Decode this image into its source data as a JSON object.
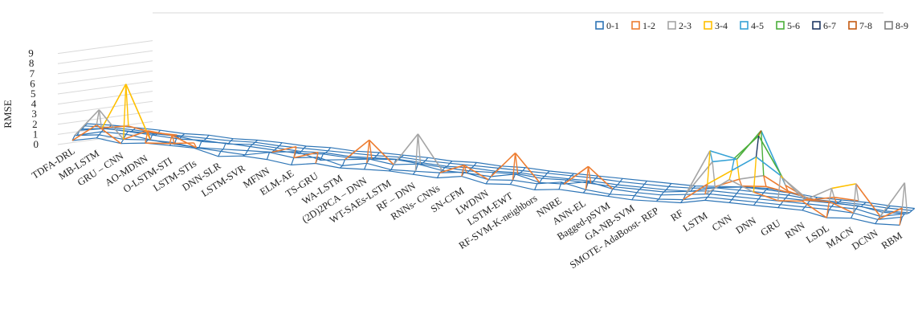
{
  "chart_data": {
    "type": "surface-3d-wireframe",
    "ylabel": "RMSE",
    "zlim": [
      0,
      9
    ],
    "z_ticks": [
      "0",
      "1",
      "2",
      "3",
      "4",
      "5",
      "6",
      "7",
      "8",
      "9"
    ],
    "legend_position": "top-right",
    "legend": [
      {
        "label": "0-1",
        "color": "#2e75b6"
      },
      {
        "label": "1-2",
        "color": "#ed7d31"
      },
      {
        "label": "2-3",
        "color": "#a5a5a5"
      },
      {
        "label": "3-4",
        "color": "#ffc000"
      },
      {
        "label": "4-5",
        "color": "#36a2d6"
      },
      {
        "label": "5-6",
        "color": "#4caf3c"
      },
      {
        "label": "6-7",
        "color": "#1f3864"
      },
      {
        "label": "7-8",
        "color": "#c55a11"
      },
      {
        "label": "8-9",
        "color": "#7f7f7f"
      }
    ],
    "categories": [
      "TDFA-DRL",
      "MB-LSTM",
      "GRU – CNN",
      "AO-MDNN",
      "O-LSTM-STI",
      "LSTM-STIs",
      "DNN-SLR",
      "LSTM-SVR",
      "MFNN",
      "ELM-AE",
      "TS-GRU",
      "WA-LSTM",
      "(2D)2PCA – DNN",
      "WT-SAEs-LSTM",
      "RF – DNN",
      "RNNs- CNNs",
      "SN-CFM",
      "LWDNN",
      "LSTM-EWT",
      "RF-SVM-K-neighbors",
      "NNRE",
      "ANN-EL",
      "Bagged-pSVM",
      "GA-NB-SVM",
      "SMOTE- AdaBoost- REP",
      "RF",
      "LSTM",
      "CNN",
      "DNN",
      "GRU",
      "RNN",
      "LSDL",
      "MACN",
      "DCNN",
      "RBM"
    ],
    "series": [
      {
        "values": [
          0.4,
          2.2,
          0.6,
          0.9,
          1.1,
          1.4,
          0.3,
          0.6,
          0.5,
          0.2,
          0.6,
          0.4,
          0.5,
          0.6,
          0.5,
          0.4,
          0.8,
          0.3,
          0.5,
          0.2,
          0.5,
          0.4,
          0.3,
          0.2,
          0.3,
          0.4,
          1.5,
          3.2,
          2.2,
          1.6,
          1.8,
          0.4,
          0.6,
          0.3,
          0.4
        ]
      },
      {
        "values": [
          0.6,
          3.4,
          0.7,
          1.8,
          1.6,
          0.6,
          0.5,
          0.4,
          1.2,
          0.6,
          1.4,
          0.3,
          0.8,
          0.4,
          0.5,
          0.6,
          1.6,
          0.4,
          0.6,
          0.5,
          1.4,
          0.4,
          0.2,
          0.3,
          0.2,
          0.4,
          2.2,
          3.8,
          5.4,
          3.8,
          1.6,
          1.7,
          0.8,
          0.4,
          1.8
        ]
      },
      {
        "values": [
          0.3,
          1.2,
          5.9,
          0.6,
          0.4,
          0.3,
          0.4,
          0.5,
          0.6,
          1.4,
          0.3,
          0.6,
          2.8,
          0.6,
          3.9,
          0.5,
          0.5,
          0.4,
          3.0,
          0.3,
          0.4,
          2.4,
          0.4,
          0.3,
          0.3,
          0.6,
          5.2,
          4.7,
          7.2,
          3.2,
          1.4,
          2.7,
          3.4,
          0.4,
          4.0
        ]
      },
      {
        "values": [
          0.5,
          1.0,
          1.4,
          1.0,
          1.0,
          0.6,
          0.7,
          0.6,
          0.5,
          0.4,
          0.6,
          0.5,
          0.6,
          0.8,
          0.6,
          0.5,
          0.4,
          0.5,
          0.6,
          0.4,
          0.5,
          0.4,
          0.3,
          0.3,
          0.3,
          0.6,
          3.8,
          4.3,
          7.4,
          2.2,
          1.0,
          1.5,
          1.4,
          0.5,
          0.6
        ]
      },
      {
        "values": [
          0.3,
          0.6,
          0.5,
          0.4,
          0.3,
          0.4,
          0.3,
          0.5,
          0.4,
          0.3,
          0.4,
          0.3,
          0.4,
          0.5,
          0.4,
          0.3,
          0.4,
          0.3,
          0.4,
          0.3,
          0.3,
          0.3,
          0.2,
          0.2,
          0.2,
          0.3,
          1.0,
          2.0,
          2.6,
          1.3,
          0.7,
          0.6,
          0.5,
          0.3,
          0.4
        ]
      },
      {
        "values": [
          0.3,
          0.4,
          0.4,
          0.3,
          0.3,
          0.3,
          0.3,
          0.4,
          0.3,
          0.3,
          0.3,
          0.3,
          0.3,
          0.4,
          0.3,
          0.3,
          0.3,
          0.3,
          0.3,
          0.3,
          0.3,
          0.3,
          0.2,
          0.2,
          0.2,
          0.3,
          0.6,
          1.0,
          1.2,
          0.8,
          0.4,
          0.4,
          0.4,
          0.3,
          0.3
        ]
      },
      {
        "values": [
          0.2,
          0.3,
          0.3,
          0.3,
          0.2,
          0.3,
          0.2,
          0.3,
          0.3,
          0.2,
          0.3,
          0.2,
          0.3,
          0.3,
          0.3,
          0.2,
          0.3,
          0.2,
          0.3,
          0.2,
          0.2,
          0.2,
          0.2,
          0.2,
          0.2,
          0.2,
          0.4,
          0.6,
          0.7,
          0.5,
          0.3,
          0.3,
          0.3,
          0.2,
          0.2
        ]
      }
    ]
  }
}
